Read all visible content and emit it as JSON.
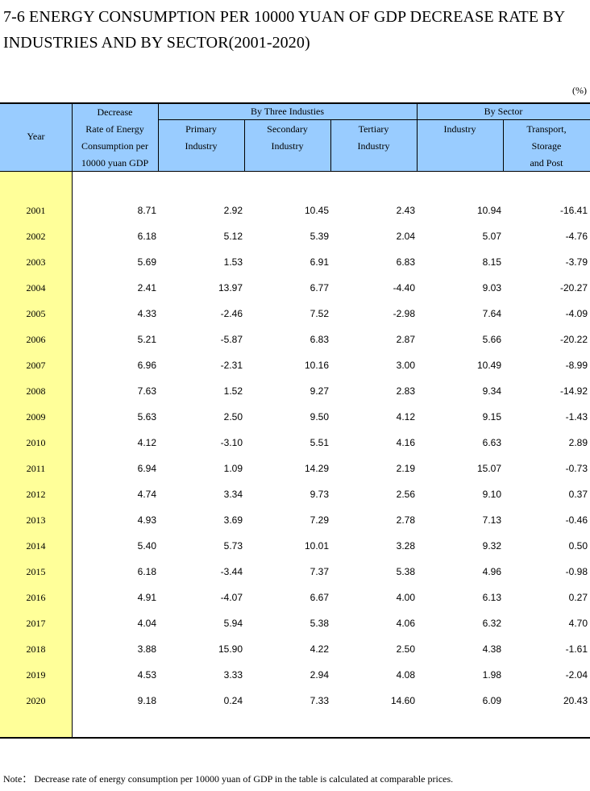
{
  "title": "7-6  ENERGY CONSUMPTION PER 10000 YUAN OF GDP DECREASE RATE BY INDUSTRIES AND BY SECTOR(2001-2020)",
  "unit": "(%)",
  "headers": {
    "year": "Year",
    "decrease": [
      "Decrease",
      "Rate of Energy",
      "Consumption per",
      "10000 yuan GDP"
    ],
    "by_three": "By Three Industies",
    "by_sector": "By Sector",
    "primary": [
      "Primary",
      "Industry"
    ],
    "secondary": [
      "Secondary",
      "Industry"
    ],
    "tertiary": [
      "Tertiary",
      "Industry"
    ],
    "industry": "Industry",
    "transport": [
      "Transport,",
      "Storage",
      "and Post"
    ]
  },
  "rows": [
    {
      "year": "2001",
      "total": "8.71",
      "primary": "2.92",
      "secondary": "10.45",
      "tertiary": "2.43",
      "industry": "10.94",
      "transport": "-16.41"
    },
    {
      "year": "2002",
      "total": "6.18",
      "primary": "5.12",
      "secondary": "5.39",
      "tertiary": "2.04",
      "industry": "5.07",
      "transport": "-4.76"
    },
    {
      "year": "2003",
      "total": "5.69",
      "primary": "1.53",
      "secondary": "6.91",
      "tertiary": "6.83",
      "industry": "8.15",
      "transport": "-3.79"
    },
    {
      "year": "2004",
      "total": "2.41",
      "primary": "13.97",
      "secondary": "6.77",
      "tertiary": "-4.40",
      "industry": "9.03",
      "transport": "-20.27"
    },
    {
      "year": "2005",
      "total": "4.33",
      "primary": "-2.46",
      "secondary": "7.52",
      "tertiary": "-2.98",
      "industry": "7.64",
      "transport": "-4.09"
    },
    {
      "year": "2006",
      "total": "5.21",
      "primary": "-5.87",
      "secondary": "6.83",
      "tertiary": "2.87",
      "industry": "5.66",
      "transport": "-20.22"
    },
    {
      "year": "2007",
      "total": "6.96",
      "primary": "-2.31",
      "secondary": "10.16",
      "tertiary": "3.00",
      "industry": "10.49",
      "transport": "-8.99"
    },
    {
      "year": "2008",
      "total": "7.63",
      "primary": "1.52",
      "secondary": "9.27",
      "tertiary": "2.83",
      "industry": "9.34",
      "transport": "-14.92"
    },
    {
      "year": "2009",
      "total": "5.63",
      "primary": "2.50",
      "secondary": "9.50",
      "tertiary": "4.12",
      "industry": "9.15",
      "transport": "-1.43"
    },
    {
      "year": "2010",
      "total": "4.12",
      "primary": "-3.10",
      "secondary": "5.51",
      "tertiary": "4.16",
      "industry": "6.63",
      "transport": "2.89"
    },
    {
      "year": "2011",
      "total": "6.94",
      "primary": "1.09",
      "secondary": "14.29",
      "tertiary": "2.19",
      "industry": "15.07",
      "transport": "-0.73"
    },
    {
      "year": "2012",
      "total": "4.74",
      "primary": "3.34",
      "secondary": "9.73",
      "tertiary": "2.56",
      "industry": "9.10",
      "transport": "0.37"
    },
    {
      "year": "2013",
      "total": "4.93",
      "primary": "3.69",
      "secondary": "7.29",
      "tertiary": "2.78",
      "industry": "7.13",
      "transport": "-0.46"
    },
    {
      "year": "2014",
      "total": "5.40",
      "primary": "5.73",
      "secondary": "10.01",
      "tertiary": "3.28",
      "industry": "9.32",
      "transport": "0.50"
    },
    {
      "year": "2015",
      "total": "6.18",
      "primary": "-3.44",
      "secondary": "7.37",
      "tertiary": "5.38",
      "industry": "4.96",
      "transport": "-0.98"
    },
    {
      "year": "2016",
      "total": "4.91",
      "primary": "-4.07",
      "secondary": "6.67",
      "tertiary": "4.00",
      "industry": "6.13",
      "transport": "0.27"
    },
    {
      "year": "2017",
      "total": "4.04",
      "primary": "5.94",
      "secondary": "5.38",
      "tertiary": "4.06",
      "industry": "6.32",
      "transport": "4.70"
    },
    {
      "year": "2018",
      "total": "3.88",
      "primary": "15.90",
      "secondary": "4.22",
      "tertiary": "2.50",
      "industry": "4.38",
      "transport": "-1.61"
    },
    {
      "year": "2019",
      "total": "4.53",
      "primary": "3.33",
      "secondary": "2.94",
      "tertiary": "4.08",
      "industry": "1.98",
      "transport": "-2.04"
    },
    {
      "year": "2020",
      "total": "9.18",
      "primary": "0.24",
      "secondary": "7.33",
      "tertiary": "14.60",
      "industry": "6.09",
      "transport": "20.43"
    }
  ],
  "note": "Note：  Decrease rate of energy consumption per 10000 yuan of GDP in the table is calculated at comparable prices."
}
